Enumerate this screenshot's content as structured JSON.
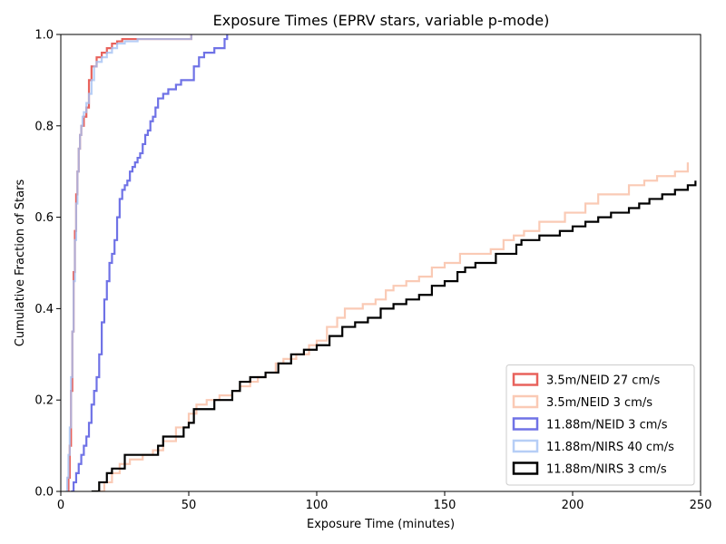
{
  "chart_data": {
    "type": "line",
    "subtype": "step-cdf",
    "title": "Exposure Times (EPRV stars, variable p-mode)",
    "xlabel": "Exposure Time (minutes)",
    "ylabel": "Cumulative Fraction of Stars",
    "xlim": [
      0,
      250
    ],
    "ylim": [
      0,
      1.0
    ],
    "xticks": [
      0,
      50,
      100,
      150,
      200,
      250
    ],
    "yticks": [
      0.0,
      0.2,
      0.4,
      0.6,
      0.8,
      1.0
    ],
    "xtick_labels": [
      "0",
      "50",
      "100",
      "150",
      "200",
      "250"
    ],
    "ytick_labels": [
      "0.0",
      "0.2",
      "0.4",
      "0.6",
      "0.8",
      "1.0"
    ],
    "grid": false,
    "legend_position": "lower-right",
    "series": [
      {
        "name": "3.5m/NEID 27 cm/s",
        "color": "#e8625c",
        "opacity": 1.0,
        "x": [
          2.5,
          3,
          3.5,
          4,
          4.5,
          5,
          5.5,
          6,
          6.5,
          7,
          7.5,
          8,
          9,
          10,
          11,
          12,
          14,
          16,
          18,
          20,
          22,
          24,
          30,
          40,
          51
        ],
        "y": [
          0.0,
          0.03,
          0.1,
          0.22,
          0.35,
          0.48,
          0.57,
          0.65,
          0.7,
          0.75,
          0.78,
          0.8,
          0.82,
          0.84,
          0.9,
          0.93,
          0.95,
          0.96,
          0.97,
          0.98,
          0.985,
          0.99,
          0.99,
          0.99,
          1.0
        ]
      },
      {
        "name": "3.5m/NEID 3 cm/s",
        "color": "#f8b89c",
        "opacity": 0.75,
        "x": [
          13,
          17,
          20,
          23,
          27,
          32,
          36,
          40,
          45,
          50,
          53,
          57,
          62,
          67,
          70,
          74,
          77,
          80,
          84,
          87,
          92,
          97,
          100,
          104,
          108,
          111,
          118,
          123,
          127,
          130,
          135,
          140,
          145,
          150,
          156,
          168,
          173,
          177,
          181,
          187,
          197,
          205,
          210,
          222,
          228,
          233,
          240,
          245
        ],
        "y": [
          0.0,
          0.02,
          0.04,
          0.06,
          0.07,
          0.08,
          0.09,
          0.11,
          0.14,
          0.17,
          0.19,
          0.2,
          0.21,
          0.22,
          0.23,
          0.24,
          0.25,
          0.26,
          0.28,
          0.29,
          0.3,
          0.32,
          0.33,
          0.36,
          0.38,
          0.4,
          0.41,
          0.42,
          0.44,
          0.45,
          0.46,
          0.47,
          0.49,
          0.5,
          0.52,
          0.53,
          0.55,
          0.56,
          0.57,
          0.59,
          0.61,
          0.63,
          0.65,
          0.67,
          0.68,
          0.69,
          0.7,
          0.72
        ]
      },
      {
        "name": "11.88m/NEID 3 cm/s",
        "color": "#4b4fe0",
        "opacity": 0.8,
        "x": [
          4,
          5,
          6,
          7,
          8,
          9,
          10,
          11,
          12,
          13,
          14,
          15,
          16,
          17,
          18,
          19,
          20,
          21,
          22,
          23,
          24,
          25,
          26,
          27,
          28,
          29,
          30,
          31,
          32,
          33,
          34,
          35,
          36,
          37,
          38,
          40,
          42,
          45,
          47,
          52,
          54,
          56,
          60,
          64,
          65
        ],
        "y": [
          0.0,
          0.02,
          0.04,
          0.06,
          0.08,
          0.1,
          0.12,
          0.15,
          0.19,
          0.22,
          0.25,
          0.3,
          0.37,
          0.42,
          0.46,
          0.5,
          0.52,
          0.55,
          0.6,
          0.64,
          0.66,
          0.67,
          0.68,
          0.7,
          0.71,
          0.72,
          0.73,
          0.74,
          0.76,
          0.78,
          0.79,
          0.81,
          0.82,
          0.84,
          0.86,
          0.87,
          0.88,
          0.89,
          0.9,
          0.93,
          0.95,
          0.96,
          0.97,
          0.99,
          1.0
        ]
      },
      {
        "name": "11.88m/NIRS 40 cm/s",
        "color": "#a4c2f4",
        "opacity": 0.8,
        "x": [
          2,
          2.5,
          3,
          3.5,
          4,
          4.5,
          5,
          5.5,
          6,
          6.5,
          7,
          7.5,
          8,
          8.5,
          9,
          10,
          11,
          12,
          13,
          14,
          16,
          18,
          20,
          22,
          25,
          30,
          40,
          51
        ],
        "y": [
          0.0,
          0.03,
          0.08,
          0.14,
          0.25,
          0.35,
          0.46,
          0.55,
          0.63,
          0.7,
          0.75,
          0.78,
          0.8,
          0.82,
          0.83,
          0.85,
          0.87,
          0.9,
          0.93,
          0.94,
          0.95,
          0.96,
          0.97,
          0.98,
          0.985,
          0.99,
          0.99,
          1.0
        ]
      },
      {
        "name": "11.88m/NIRS 3 cm/s",
        "color": "#000000",
        "opacity": 1.0,
        "x": [
          12,
          15,
          18,
          20,
          25,
          38,
          40,
          48,
          50,
          52,
          60,
          67,
          70,
          74,
          80,
          85,
          90,
          95,
          100,
          105,
          110,
          115,
          120,
          125,
          130,
          135,
          140,
          145,
          150,
          155,
          158,
          162,
          170,
          178,
          180,
          187,
          195,
          200,
          205,
          210,
          215,
          222,
          226,
          230,
          235,
          240,
          245,
          248
        ],
        "y": [
          0.0,
          0.02,
          0.04,
          0.05,
          0.08,
          0.1,
          0.12,
          0.14,
          0.15,
          0.18,
          0.2,
          0.22,
          0.24,
          0.25,
          0.26,
          0.28,
          0.3,
          0.31,
          0.32,
          0.34,
          0.36,
          0.37,
          0.38,
          0.4,
          0.41,
          0.42,
          0.43,
          0.45,
          0.46,
          0.48,
          0.49,
          0.5,
          0.52,
          0.54,
          0.55,
          0.56,
          0.57,
          0.58,
          0.59,
          0.6,
          0.61,
          0.62,
          0.63,
          0.64,
          0.65,
          0.66,
          0.67,
          0.68
        ]
      }
    ]
  }
}
